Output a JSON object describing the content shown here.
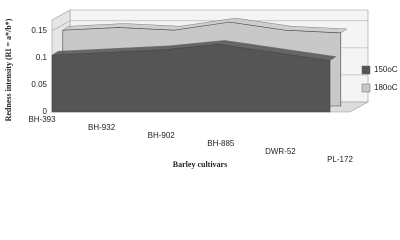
{
  "chart_data": {
    "type": "area3d",
    "y_label": "Redness intensity (RI = a*/b*)",
    "x_label": "Barley cultivars",
    "categories": [
      "BH-393",
      "BH-932",
      "BH-902",
      "BH-885",
      "DWR-52",
      "PL-172"
    ],
    "series": [
      {
        "name": "150oC",
        "color": "#555555",
        "values": [
          0.105,
          0.11,
          0.115,
          0.125,
          0.11,
          0.095
        ]
      },
      {
        "name": "180oC",
        "color": "#c8c8c8",
        "values": [
          0.14,
          0.145,
          0.14,
          0.155,
          0.14,
          0.135
        ]
      }
    ],
    "ylim": [
      0,
      0.17
    ],
    "yticks": [
      0,
      0.05,
      0.1,
      0.15
    ],
    "grid": true,
    "legend": "right"
  }
}
